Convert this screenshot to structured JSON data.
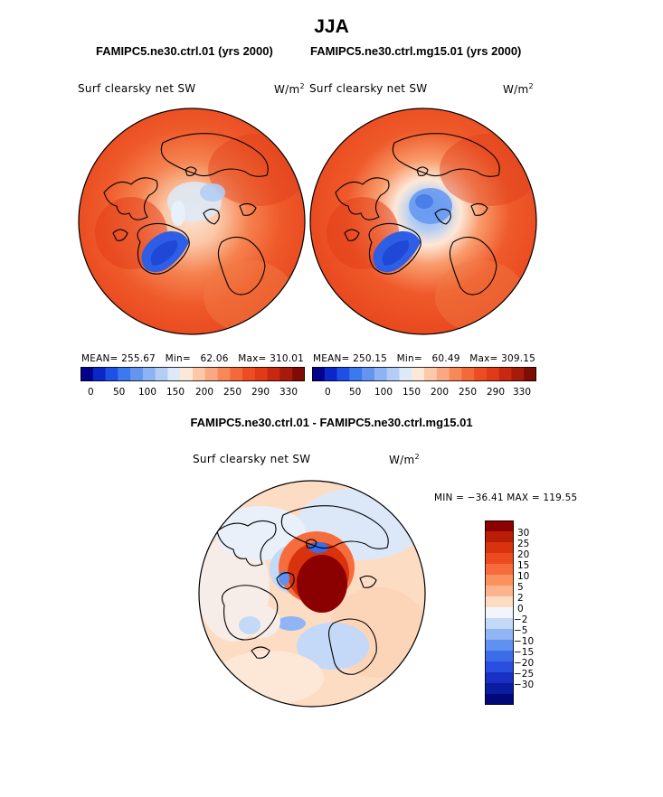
{
  "title": "JJA",
  "panels": [
    {
      "title": "FAMIPC5.ne30.ctrl.01 (yrs 2000)",
      "field": "Surf clearsky net SW",
      "units_base": "W/m",
      "units_exp": "2",
      "stats": {
        "mean_label": "MEAN=",
        "mean": "255.67",
        "min_label": "Min=",
        "min": "62.06",
        "max_label": "Max=",
        "max": "310.01"
      }
    },
    {
      "title": "FAMIPC5.ne30.ctrl.mg15.01 (yrs 2000)",
      "field": "Surf clearsky net SW",
      "units_base": "W/m",
      "units_exp": "2",
      "stats": {
        "mean_label": "MEAN=",
        "mean": "250.15",
        "min_label": "Min=",
        "min": "60.49",
        "max_label": "Max=",
        "max": "309.15"
      }
    }
  ],
  "colorbar_top": {
    "ticks": [
      "0",
      "50",
      "100",
      "150",
      "200",
      "250",
      "290",
      "330"
    ],
    "colors": [
      "#02028c",
      "#0a28c8",
      "#1e50e6",
      "#3c78f0",
      "#6496f0",
      "#8cb4f5",
      "#b4cdf5",
      "#dceaf8",
      "#fde8d8",
      "#fcc8a8",
      "#fba882",
      "#f88858",
      "#f4693a",
      "#ee4c22",
      "#e23a16",
      "#c82810",
      "#a81a0a",
      "#7e0c04"
    ]
  },
  "diff_panel": {
    "title": "FAMIPC5.ne30.ctrl.01 - FAMIPC5.ne30.ctrl.mg15.01",
    "field": "Surf clearsky net SW",
    "units_base": "W/m",
    "units_exp": "2",
    "stats_text": "MIN = −36.41 MAX = 119.55"
  },
  "colorbar_diff": {
    "ticks": [
      "30",
      "25",
      "20",
      "15",
      "10",
      "5",
      "2",
      "0",
      "−2",
      "−5",
      "−10",
      "−15",
      "−20",
      "−25",
      "−30"
    ],
    "colors": [
      "#8b0000",
      "#b81e06",
      "#d8320e",
      "#ec4a20",
      "#f76c3c",
      "#fb925e",
      "#fcb48e",
      "#fddcc4",
      "#f2f6fc",
      "#c4d8f8",
      "#90b4f4",
      "#6090f0",
      "#3c6ce8",
      "#2a4ee0",
      "#1a30c4",
      "#0a1ca0",
      "#02087a"
    ]
  }
}
